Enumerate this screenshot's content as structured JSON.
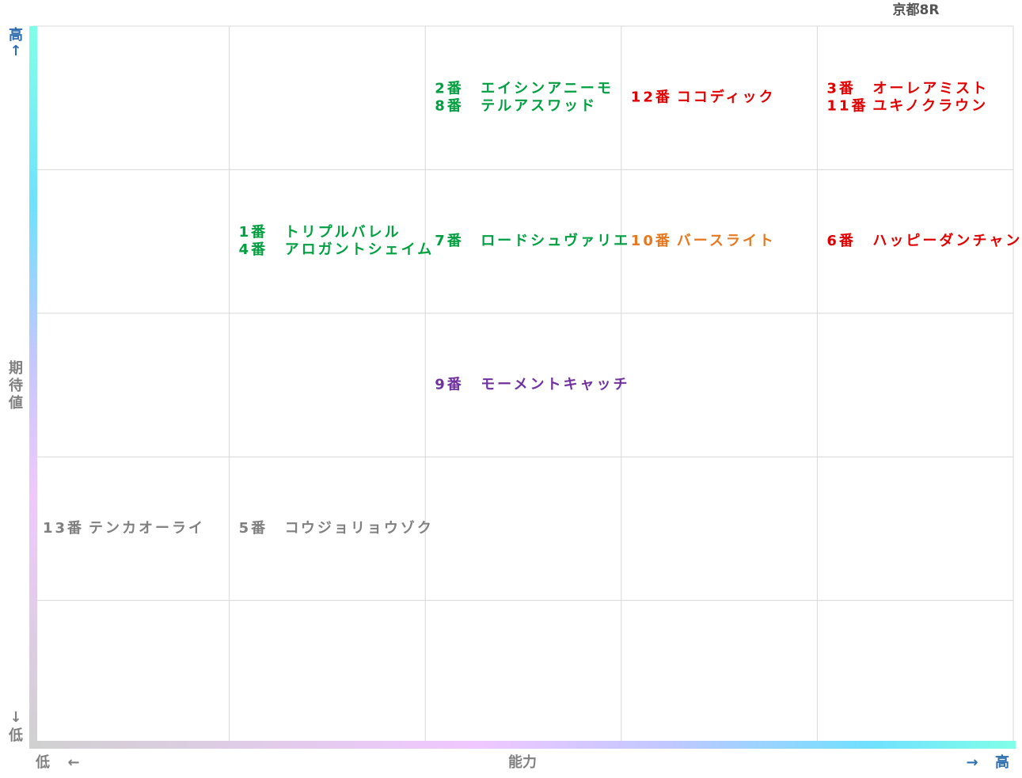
{
  "title": "京都8R",
  "y_axis": {
    "label": "期待値",
    "high": "高",
    "high_arrow": "↑",
    "low_arrow": "↓",
    "low": "低"
  },
  "x_axis": {
    "label": "能力",
    "low": "低",
    "low_arrow": "←",
    "high_arrow": "→",
    "high": "高"
  },
  "rows": [
    [
      [],
      [],
      [
        {
          "number": "2番",
          "name": "エイシンアニーモ",
          "color": "#00a040"
        },
        {
          "number": "8番",
          "name": "テルアスワッド",
          "color": "#00a040"
        }
      ],
      [
        {
          "number": "12番",
          "name": "ココディック",
          "color": "#e00000"
        }
      ],
      [
        {
          "number": "3番",
          "name": "オーレアミスト",
          "color": "#e00000"
        },
        {
          "number": "11番",
          "name": "ユキノクラウン",
          "color": "#e00000"
        }
      ]
    ],
    [
      [],
      [
        {
          "number": "1番",
          "name": "トリプルバレル",
          "color": "#00a040"
        },
        {
          "number": "4番",
          "name": "アロガントシェイム",
          "color": "#00a040"
        }
      ],
      [
        {
          "number": "7番",
          "name": "ロードシュヴァリエ",
          "color": "#00a040"
        }
      ],
      [
        {
          "number": "10番",
          "name": "バースライト",
          "color": "#e87820"
        }
      ],
      [
        {
          "number": "6番",
          "name": "ハッピーダンチャン",
          "color": "#e00000"
        }
      ]
    ],
    [
      [],
      [],
      [
        {
          "number": "9番",
          "name": "モーメントキャッチ",
          "color": "#7030a0"
        }
      ],
      [],
      []
    ],
    [
      [
        {
          "number": "13番",
          "name": "テンカオーライ",
          "color": "#808080"
        }
      ],
      [
        {
          "number": "5番",
          "name": "コウジョリョウゾク",
          "color": "#808080"
        }
      ],
      [],
      [],
      []
    ],
    [
      [],
      [],
      [],
      [],
      []
    ]
  ]
}
